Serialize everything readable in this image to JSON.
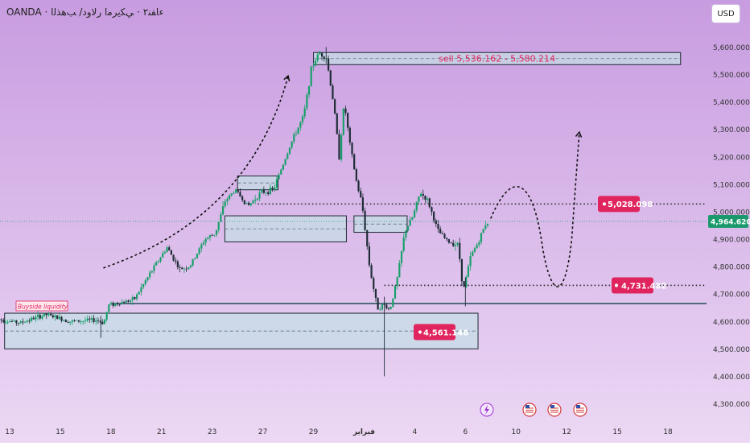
{
  "header": {
    "symbol_title": "OANDA · ﺀﺎﻔﻨ٢ · ﻲﻜﻳﺮﻣﺍ ﺭﻻﻭﺩ/ ﺐﻫﺬﻟﺍ",
    "currency": "USD"
  },
  "chart_data": {
    "type": "candlestick",
    "title": "OANDA · ﺀﺎﻔﻨ٢ · ﻲﻜﻳﺮﻣﺍ ﺭﻻﻭﺩ/ ﺐﻫﺬﻟﺍ",
    "ylim": [
      4250,
      5660
    ],
    "y_ticks": [
      "5,600.000",
      "5,500.000",
      "5,400.000",
      "5,300.000",
      "5,200.000",
      "5,100.000",
      "5,000.000",
      "4,900.000",
      "4,800.000",
      "4,700.000",
      "4,600.000",
      "4,500.000",
      "4,400.000",
      "4,300.000"
    ],
    "y_tick_values": [
      5600,
      5500,
      5400,
      5300,
      5200,
      5100,
      5000,
      4900,
      4800,
      4700,
      4600,
      4500,
      4400,
      4300
    ],
    "x_ticks": [
      "13",
      "15",
      "18",
      "21",
      "23",
      "27",
      "29",
      "فبراير",
      "4",
      "6",
      "10",
      "12",
      "15",
      "18"
    ],
    "x_tick_values": [
      0,
      2,
      4,
      6,
      8,
      10,
      12,
      14,
      16,
      18,
      20,
      22,
      24,
      26
    ],
    "last_price": "4,964.620",
    "last_price_value": 4964.62,
    "price_path": [
      [
        -0.5,
        4610
      ],
      [
        0.5,
        4595
      ],
      [
        1.5,
        4625
      ],
      [
        2.5,
        4600
      ],
      [
        3.5,
        4605
      ],
      [
        3.8,
        4595
      ],
      [
        4.0,
        4660
      ],
      [
        5.0,
        4680
      ],
      [
        5.8,
        4800
      ],
      [
        6.3,
        4870
      ],
      [
        6.8,
        4790
      ],
      [
        7.2,
        4800
      ],
      [
        7.8,
        4900
      ],
      [
        8.2,
        4920
      ],
      [
        8.6,
        5040
      ],
      [
        9.0,
        5080
      ],
      [
        9.5,
        5020
      ],
      [
        10.0,
        5070
      ],
      [
        10.5,
        5080
      ],
      [
        11.2,
        5250
      ],
      [
        11.7,
        5350
      ],
      [
        12.0,
        5520
      ],
      [
        12.3,
        5580
      ],
      [
        12.6,
        5560
      ],
      [
        12.9,
        5380
      ],
      [
        13.1,
        5200
      ],
      [
        13.3,
        5400
      ],
      [
        13.5,
        5260
      ],
      [
        13.8,
        5100
      ],
      [
        14.0,
        5030
      ],
      [
        14.3,
        4800
      ],
      [
        14.6,
        4650
      ],
      [
        14.9,
        4660
      ],
      [
        15.1,
        4640
      ],
      [
        15.4,
        4760
      ],
      [
        15.7,
        4930
      ],
      [
        16.0,
        4980
      ],
      [
        16.3,
        5070
      ],
      [
        16.6,
        5040
      ],
      [
        17.0,
        4930
      ],
      [
        17.4,
        4890
      ],
      [
        17.8,
        4880
      ],
      [
        18.0,
        4710
      ],
      [
        18.3,
        4840
      ],
      [
        18.6,
        4890
      ],
      [
        18.9,
        4960
      ]
    ],
    "buyside_label": "Buyside liquidity",
    "sell_label": "sell 5,536.162 - 5,580.214",
    "zones": [
      {
        "name": "sell-zone",
        "x0": 12,
        "x1": 26.5,
        "y0": 5536.162,
        "y1": 5580.214
      },
      {
        "name": "demand-zone-low",
        "x0": -0.2,
        "x1": 18.5,
        "y0": 4500,
        "y1": 4630
      },
      {
        "name": "fvg-zone-left",
        "x0": 8.5,
        "x1": 13.3,
        "y0": 4890,
        "y1": 4985
      },
      {
        "name": "fvg-zone-right",
        "x0": 13.6,
        "x1": 15.7,
        "y0": 4925,
        "y1": 4985
      },
      {
        "name": "small-zone",
        "x0": 9.0,
        "x1": 10.6,
        "y0": 5080,
        "y1": 5130
      }
    ],
    "levels": [
      {
        "name": "level-5028",
        "value": 5028.098,
        "label": "5,028.098",
        "x0": 9.8
      },
      {
        "name": "level-4731",
        "value": 4731.482,
        "label": "4,731.482",
        "x0": 14.8
      },
      {
        "name": "level-4561",
        "value": 4561.148,
        "label": "4,561.148",
        "x0": -0.2
      }
    ],
    "support_line": {
      "value": 4665
    },
    "colors": {
      "bg_top": "#c89ce0",
      "bg_bottom": "#ecd8f4",
      "up": "#18a06a",
      "down": "#1f2d37",
      "zone_fill": "#c5dde6",
      "zone_stroke": "#1e2a33",
      "label_red": "#e0245e",
      "support": "#1f4d55",
      "price_tag": "#1a9a6c",
      "axis_text": "#333333"
    }
  }
}
